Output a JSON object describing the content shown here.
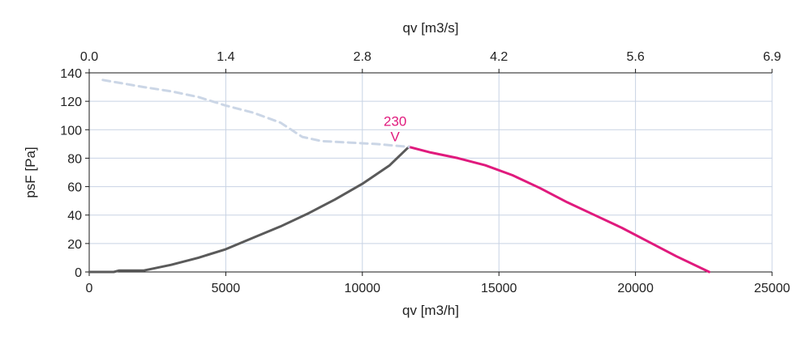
{
  "chart_data": {
    "type": "line",
    "xlabel": "qv [m3/h]",
    "x2label": "qv [m3/s]",
    "ylabel": "psF [Pa]",
    "xlim": [
      0,
      25000
    ],
    "ylim": [
      0,
      140
    ],
    "x_ticks": [
      0,
      5000,
      10000,
      15000,
      20000,
      25000
    ],
    "x2_ticks": [
      "0.0",
      "1.4",
      "2.8",
      "4.2",
      "5.6",
      "6.9"
    ],
    "y_ticks": [
      0,
      20,
      40,
      60,
      80,
      100,
      120,
      140
    ],
    "grid": true,
    "annotation": {
      "text_line1": "230",
      "text_line2": "V",
      "x": 11200,
      "y": 97
    },
    "series": [
      {
        "role": "grey-system-curve",
        "color": "#5a5a5a",
        "style": "solid",
        "points": [
          [
            0,
            0
          ],
          [
            900,
            0
          ],
          [
            1100,
            1
          ],
          [
            2000,
            1
          ],
          [
            2500,
            3
          ],
          [
            3000,
            5
          ],
          [
            4000,
            10
          ],
          [
            5000,
            16
          ],
          [
            6000,
            24
          ],
          [
            7000,
            32
          ],
          [
            8000,
            41
          ],
          [
            9000,
            51
          ],
          [
            10000,
            62
          ],
          [
            11000,
            75
          ],
          [
            11700,
            88
          ]
        ]
      },
      {
        "role": "magenta-operating-curve",
        "color": "#e01a7d",
        "style": "solid",
        "points": [
          [
            11700,
            88
          ],
          [
            12500,
            84
          ],
          [
            13500,
            80
          ],
          [
            14500,
            75
          ],
          [
            15500,
            68
          ],
          [
            16500,
            59
          ],
          [
            17500,
            49
          ],
          [
            18500,
            40
          ],
          [
            19500,
            31
          ],
          [
            20500,
            21
          ],
          [
            21500,
            11
          ],
          [
            22700,
            0
          ]
        ]
      },
      {
        "role": "dashed-stall-curve",
        "color": "#cbd6e6",
        "style": "dashed",
        "points": [
          [
            500,
            135
          ],
          [
            2000,
            130
          ],
          [
            3000,
            127
          ],
          [
            4000,
            123
          ],
          [
            5000,
            117
          ],
          [
            6000,
            112
          ],
          [
            7000,
            105
          ],
          [
            7800,
            95
          ],
          [
            8500,
            92
          ],
          [
            9500,
            91
          ],
          [
            10500,
            90
          ],
          [
            11700,
            88
          ]
        ]
      }
    ]
  }
}
